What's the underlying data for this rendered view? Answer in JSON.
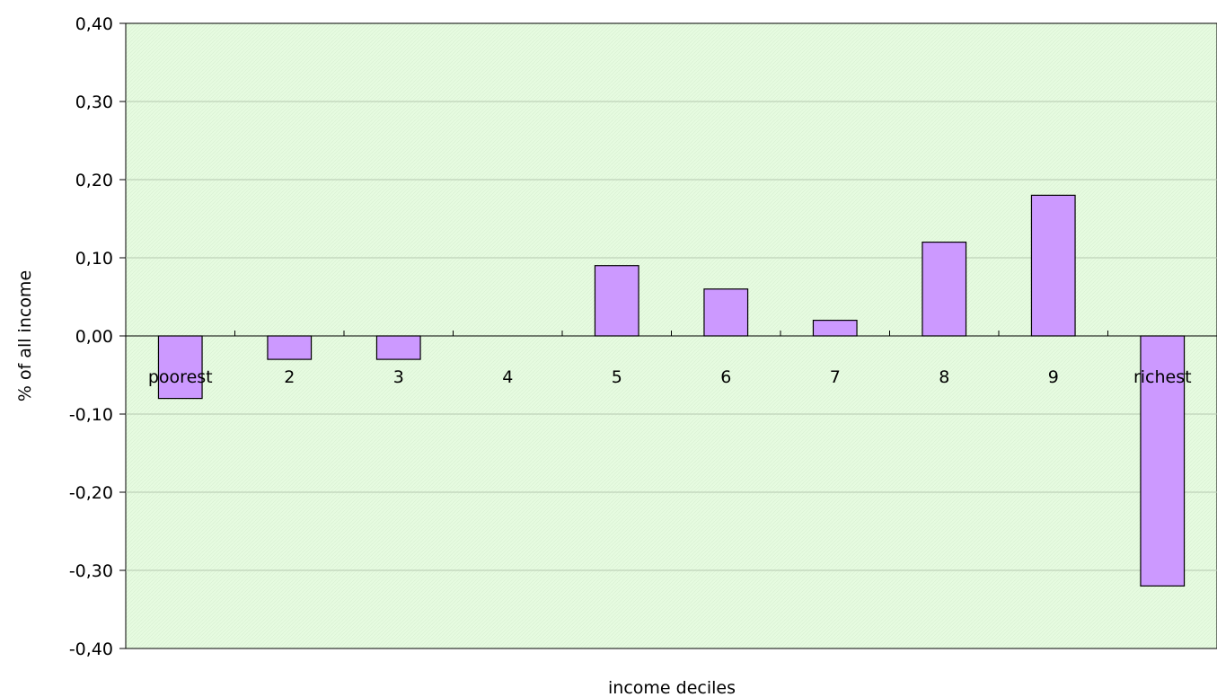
{
  "chart_data": {
    "type": "bar",
    "title": "",
    "xlabel": "income deciles",
    "ylabel": "% of all income",
    "categories": [
      "poorest",
      "2",
      "3",
      "4",
      "5",
      "6",
      "7",
      "8",
      "9",
      "richest"
    ],
    "values": [
      -0.08,
      -0.03,
      -0.03,
      0.0,
      0.09,
      0.06,
      0.02,
      0.12,
      0.18,
      -0.32
    ],
    "ylim": [
      -0.4,
      0.4
    ],
    "yticks": [
      0.4,
      0.3,
      0.2,
      0.1,
      0.0,
      -0.1,
      -0.2,
      -0.3,
      -0.4
    ],
    "ytick_labels": [
      "0,40",
      "0,30",
      "0,20",
      "0,10",
      "0,00",
      "-0,10",
      "-0,20",
      "-0,30",
      "-0,40"
    ],
    "grid": true,
    "legend": "none",
    "colors": {
      "plot_background": "#e6fbe0",
      "gridline": "#b5c8b0",
      "bar_fill": "#cc99ff",
      "bar_stroke": "#000000",
      "axis": "#000000"
    }
  }
}
